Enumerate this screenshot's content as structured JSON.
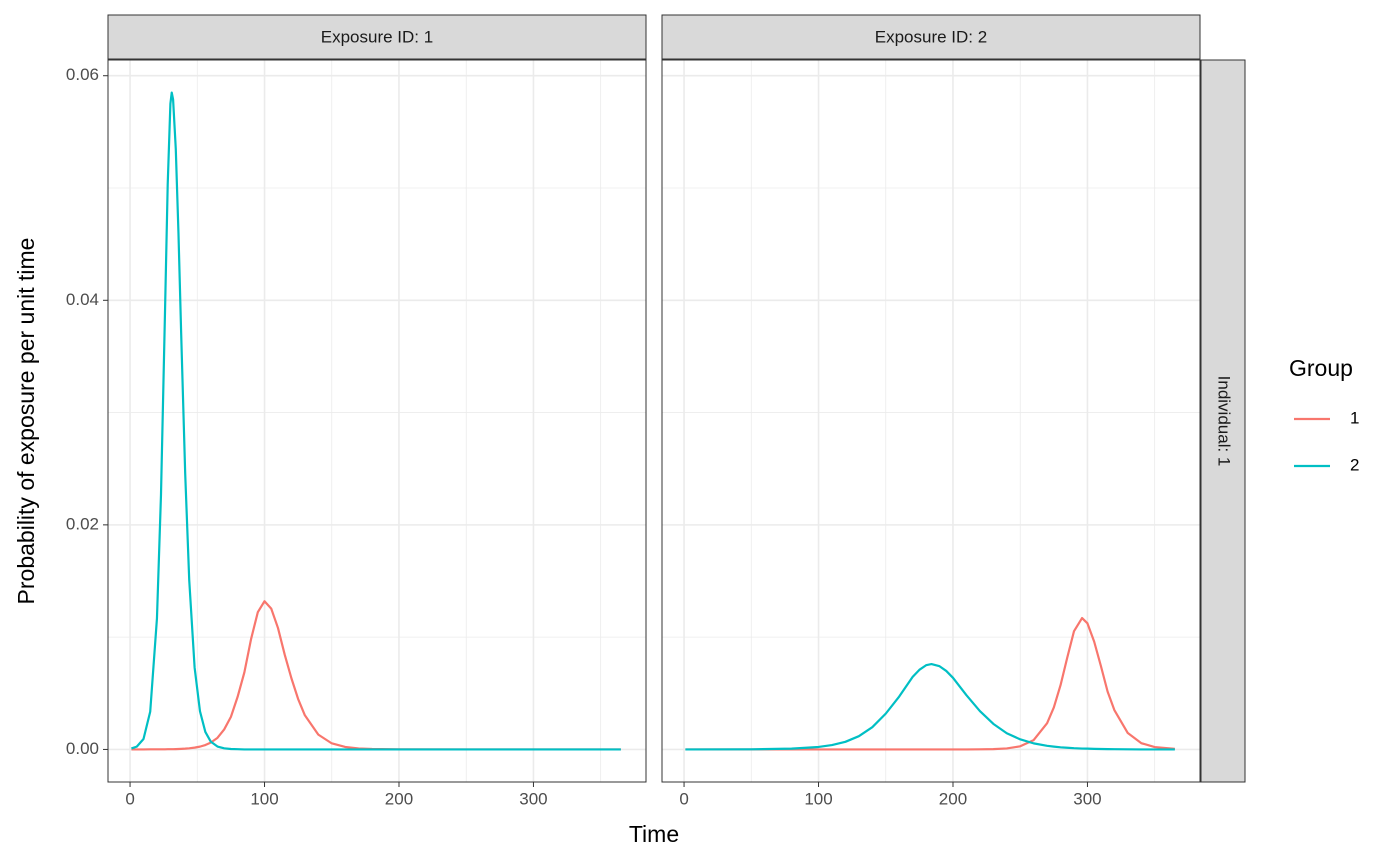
{
  "x_label": "Time",
  "y_label": "Probability of exposure per unit time",
  "legend": {
    "title": "Group"
  },
  "row_strip": "Individual: 1",
  "chart_data": [
    {
      "type": "line",
      "title": "Exposure ID: 1",
      "x": [
        1,
        5,
        10,
        15,
        20,
        23,
        26,
        28,
        30,
        31,
        32,
        34,
        36,
        38,
        41,
        44,
        48,
        52,
        56,
        60,
        65,
        70,
        75,
        80,
        85,
        90,
        95,
        100,
        105,
        110,
        115,
        120,
        125,
        130,
        140,
        150,
        160,
        170,
        180,
        200,
        250,
        300,
        365
      ],
      "series": [
        {
          "name": "1",
          "color": "#F8766D",
          "values": [
            0,
            0,
            0,
            1e-05,
            1e-05,
            1e-05,
            1e-05,
            2e-05,
            2e-05,
            2e-05,
            2e-05,
            3e-05,
            4e-05,
            5e-05,
            7e-05,
            0.0001,
            0.00016,
            0.00025,
            0.00039,
            0.00061,
            0.00103,
            0.00178,
            0.0029,
            0.00469,
            0.00686,
            0.00983,
            0.01222,
            0.0132,
            0.01254,
            0.01082,
            0.00845,
            0.00634,
            0.00449,
            0.00304,
            0.00132,
            0.00054,
            0.00022,
            9e-05,
            4e-05,
            1e-05,
            0,
            0,
            0
          ]
        },
        {
          "name": "2",
          "color": "#00BFC4",
          "values": [
            9e-05,
            0.00025,
            0.00093,
            0.00337,
            0.01167,
            0.02265,
            0.039,
            0.0503,
            0.0575,
            0.0585,
            0.0579,
            0.0535,
            0.046,
            0.0371,
            0.0246,
            0.0151,
            0.0073,
            0.0034,
            0.00156,
            0.0007,
            0.00026,
            0.0001,
            4e-05,
            2e-05,
            0,
            0,
            0,
            0,
            0,
            0,
            0,
            0,
            0,
            0,
            0,
            0,
            0,
            0,
            0,
            0,
            0,
            0,
            0
          ]
        }
      ],
      "xlim": [
        -16.4,
        383.7
      ],
      "xticks": [
        0,
        100,
        200,
        300
      ],
      "xminor": [
        50,
        150,
        250,
        350
      ],
      "ylim": [
        -0.0029,
        0.0614
      ],
      "yticks": [
        {
          "value": 0,
          "label": "0.00"
        },
        0.02,
        0.04,
        0.06
      ],
      "yminor": [
        0.01,
        0.03,
        0.05
      ],
      "grid": true
    },
    {
      "type": "line",
      "title": "Exposure ID: 2",
      "x": [
        1,
        50,
        80,
        100,
        110,
        120,
        130,
        140,
        150,
        160,
        170,
        175,
        180,
        184,
        190,
        195,
        200,
        210,
        220,
        230,
        240,
        250,
        260,
        270,
        275,
        280,
        285,
        290,
        296,
        300,
        305,
        310,
        315,
        320,
        330,
        340,
        350,
        365
      ],
      "series": [
        {
          "name": "1",
          "color": "#F8766D",
          "values": [
            0,
            0,
            0,
            0,
            0,
            0,
            0,
            0,
            0,
            0,
            0,
            0,
            0,
            0,
            0,
            0,
            0,
            0,
            1e-05,
            3e-05,
            9e-05,
            0.00028,
            0.00083,
            0.00234,
            0.00374,
            0.00573,
            0.00819,
            0.01053,
            0.0117,
            0.01123,
            0.0096,
            0.00743,
            0.00515,
            0.00351,
            0.00146,
            0.00056,
            0.00021,
            5e-05
          ]
        },
        {
          "name": "2",
          "color": "#00BFC4",
          "values": [
            0,
            1e-05,
            7e-05,
            0.00022,
            0.00039,
            0.00068,
            0.00118,
            0.00198,
            0.00319,
            0.00471,
            0.00646,
            0.00709,
            0.0075,
            0.0076,
            0.00741,
            0.00699,
            0.00638,
            0.00483,
            0.00342,
            0.00228,
            0.00144,
            0.0009,
            0.00054,
            0.00032,
            0.00025,
            0.00019,
            0.00015,
            0.00011,
            8e-05,
            7e-05,
            5e-05,
            4e-05,
            3e-05,
            2e-05,
            1e-05,
            0,
            0,
            0
          ]
        }
      ],
      "xlim": [
        -16.4,
        383.7
      ],
      "xticks": [
        0,
        100,
        200,
        300
      ],
      "xminor": [
        50,
        150,
        250,
        350
      ],
      "ylim": [
        -0.0029,
        0.0614
      ],
      "yticks": [
        {
          "value": 0,
          "label": "0.00"
        },
        0.02,
        0.04,
        0.06
      ],
      "yminor": [
        0.01,
        0.03,
        0.05
      ],
      "grid": true
    }
  ]
}
